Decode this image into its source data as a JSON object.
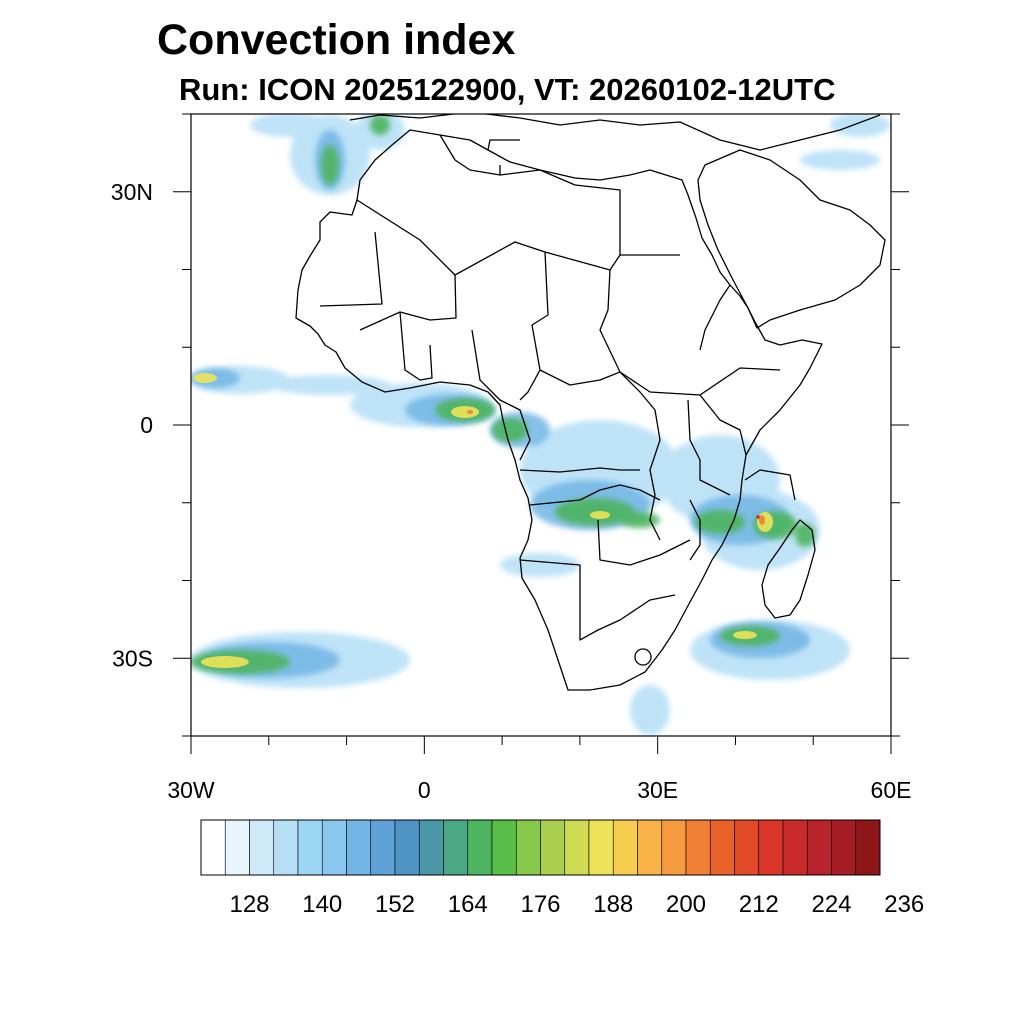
{
  "title": "Convection index",
  "subtitle": "Run: ICON 2025122900,  VT: 20260102-12UTC",
  "map": {
    "region": "Africa",
    "lon_range": [
      -30,
      60
    ],
    "lat_range": [
      -40,
      40
    ],
    "lat_labels": [
      {
        "lat": 30,
        "text": "30N"
      },
      {
        "lat": 0,
        "text": "0"
      },
      {
        "lat": -30,
        "text": "30S"
      }
    ],
    "lon_labels": [
      {
        "lon": -30,
        "text": "30W"
      },
      {
        "lon": 0,
        "text": "0"
      },
      {
        "lon": 30,
        "text": "30E"
      },
      {
        "lon": 60,
        "text": "60E"
      }
    ]
  },
  "colorbar": {
    "colors": [
      "#ffffff",
      "#e8f5fc",
      "#cfeaf9",
      "#b7e0f7",
      "#9dd6f5",
      "#8ac7ee",
      "#72b6e5",
      "#5fa2d8",
      "#4e95c6",
      "#4a98a6",
      "#4aa886",
      "#4db45f",
      "#59be48",
      "#86c94a",
      "#a9cf4d",
      "#cfdc53",
      "#ede358",
      "#f7cd50",
      "#f8b248",
      "#f69a40",
      "#f07f33",
      "#e9622a",
      "#e04a27",
      "#d93629",
      "#c92b2a",
      "#b8222a",
      "#a51c24",
      "#8e1619"
    ],
    "labels": [
      "128",
      "140",
      "152",
      "164",
      "176",
      "188",
      "200",
      "212",
      "224",
      "236"
    ],
    "label_values": [
      128,
      140,
      152,
      164,
      176,
      188,
      200,
      212,
      224,
      236
    ],
    "units_first_label_box": 2,
    "step_boxes_per_label": 3
  }
}
